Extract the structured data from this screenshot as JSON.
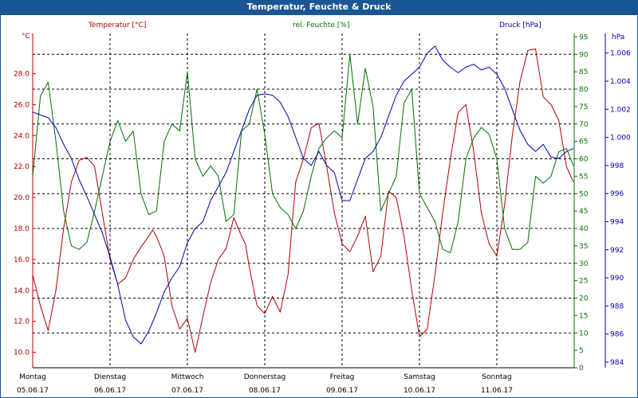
{
  "window": {
    "title": "Temperatur, Feuchte & Druck"
  },
  "colors": {
    "temperature": "#b40000",
    "humidity": "#007000",
    "pressure": "#0000b4",
    "grid": "#000000",
    "title_bg": "#1a5694"
  },
  "chart_data": {
    "type": "line",
    "title": "Temperatur, Feuchte & Druck",
    "grid": true,
    "x_labels": [
      {
        "day": "Montag",
        "date": "05.06.17"
      },
      {
        "day": "Dienstag",
        "date": "06.06.17"
      },
      {
        "day": "Mittwoch",
        "date": "07.06.17"
      },
      {
        "day": "Donnerstag",
        "date": "08.06.17"
      },
      {
        "day": "Freitag",
        "date": "09.06.17"
      },
      {
        "day": "Samstag",
        "date": "10.06.17"
      },
      {
        "day": "Sonntag",
        "date": "11.06.17"
      }
    ],
    "x_range_days": [
      0,
      7
    ],
    "axes": {
      "left": {
        "label": "Temperatur [°C]",
        "unit": "°C",
        "ylim": [
          9.0,
          30.6
        ],
        "ticks": [
          "10.0",
          "12.0",
          "14.0",
          "16.0",
          "18.0",
          "20.0",
          "22.0",
          "24.0",
          "26.0",
          "28.0"
        ],
        "tick_values": [
          10,
          12,
          14,
          16,
          18,
          20,
          22,
          24,
          26,
          28
        ]
      },
      "middle": {
        "label": "rel. Feuchte [%]",
        "unit": "%",
        "ylim": [
          0,
          96
        ],
        "ticks": [
          "0",
          "5",
          "10",
          "15",
          "20",
          "25",
          "30",
          "35",
          "40",
          "45",
          "50",
          "55",
          "60",
          "65",
          "70",
          "75",
          "80",
          "85",
          "90",
          "95"
        ],
        "tick_values": [
          0,
          5,
          10,
          15,
          20,
          25,
          30,
          35,
          40,
          45,
          50,
          55,
          60,
          65,
          70,
          75,
          80,
          85,
          90,
          95
        ]
      },
      "right": {
        "label": "Druck [hPa]",
        "unit": "hPa",
        "ylim": [
          983.6,
          1007.4
        ],
        "ticks": [
          "984",
          "986",
          "988",
          "990",
          "992",
          "994",
          "996",
          "998",
          "1.000",
          "1.002",
          "1.004",
          "1.006"
        ],
        "tick_values": [
          984,
          986,
          988,
          990,
          992,
          994,
          996,
          998,
          1000,
          1002,
          1004,
          1006
        ]
      }
    },
    "series": [
      {
        "name": "Temperatur [°C]",
        "axis": "left",
        "color": "#b40000",
        "x": [
          0,
          0.1,
          0.2,
          0.3,
          0.4,
          0.5,
          0.6,
          0.7,
          0.8,
          0.9,
          1.0,
          1.1,
          1.2,
          1.3,
          1.4,
          1.5,
          1.55,
          1.6,
          1.7,
          1.8,
          1.9,
          2.0,
          2.1,
          2.2,
          2.3,
          2.4,
          2.5,
          2.6,
          2.7,
          2.75,
          2.8,
          2.9,
          3.0,
          3.1,
          3.2,
          3.3,
          3.4,
          3.5,
          3.6,
          3.7,
          3.8,
          3.9,
          4.0,
          4.1,
          4.2,
          4.3,
          4.4,
          4.5,
          4.6,
          4.7,
          4.8,
          4.9,
          5.0,
          5.1,
          5.2,
          5.3,
          5.4,
          5.5,
          5.6,
          5.7,
          5.8,
          5.9,
          6.0,
          6.1,
          6.2,
          6.3,
          6.4,
          6.5,
          6.6,
          6.7,
          6.8,
          6.9,
          6.99
        ],
        "values": [
          15.0,
          13.0,
          11.4,
          14.0,
          18.0,
          21.0,
          22.4,
          22.6,
          22.0,
          19.0,
          16.0,
          14.4,
          14.8,
          16.0,
          16.8,
          17.5,
          17.9,
          17.5,
          16.2,
          13.0,
          11.5,
          12.2,
          10.0,
          12.3,
          14.5,
          16.0,
          16.7,
          18.7,
          17.5,
          17.0,
          15.5,
          13.0,
          12.5,
          13.6,
          12.6,
          15.0,
          21.0,
          22.5,
          24.5,
          24.8,
          22.0,
          19.0,
          17.0,
          16.5,
          17.5,
          18.8,
          15.2,
          16.2,
          20.4,
          20.0,
          17.5,
          14.0,
          11.0,
          11.5,
          15.0,
          19.0,
          22.5,
          25.5,
          26.0,
          23.0,
          19.0,
          17.0,
          16.2,
          19.5,
          24.0,
          27.5,
          29.5,
          29.6,
          26.5,
          26.0,
          25.0,
          22.0,
          21.0
        ]
      },
      {
        "name": "rel. Feuchte [%]",
        "axis": "middle",
        "color": "#007000",
        "x": [
          0,
          0.1,
          0.2,
          0.3,
          0.4,
          0.5,
          0.6,
          0.7,
          0.8,
          0.9,
          1.0,
          1.1,
          1.2,
          1.3,
          1.4,
          1.5,
          1.6,
          1.7,
          1.8,
          1.9,
          2.0,
          2.1,
          2.2,
          2.3,
          2.4,
          2.5,
          2.6,
          2.7,
          2.8,
          2.9,
          3.0,
          3.1,
          3.2,
          3.3,
          3.4,
          3.5,
          3.6,
          3.7,
          3.8,
          3.9,
          4.0,
          4.1,
          4.2,
          4.3,
          4.4,
          4.5,
          4.6,
          4.7,
          4.8,
          4.9,
          5.0,
          5.1,
          5.2,
          5.3,
          5.4,
          5.5,
          5.6,
          5.7,
          5.8,
          5.9,
          6.0,
          6.1,
          6.2,
          6.3,
          6.4,
          6.5,
          6.6,
          6.7,
          6.8,
          6.9,
          6.99
        ],
        "values": [
          55,
          78,
          82,
          65,
          45,
          35,
          34,
          36,
          45,
          55,
          65,
          71,
          65,
          68,
          50,
          44,
          45,
          65,
          70,
          68,
          85,
          60,
          55,
          58,
          55,
          42,
          44,
          68,
          70,
          80,
          67,
          50,
          46,
          44,
          40,
          45,
          55,
          63,
          66,
          68,
          66,
          90,
          70,
          86,
          75,
          45,
          50,
          55,
          76,
          80,
          50,
          46,
          42,
          34,
          33,
          42,
          60,
          66,
          69,
          67,
          60,
          40,
          34,
          34,
          36,
          55,
          53,
          55,
          62,
          63,
          58
        ]
      },
      {
        "name": "Druck [hPa]",
        "axis": "right",
        "color": "#0000b4",
        "x": [
          0,
          0.1,
          0.2,
          0.3,
          0.4,
          0.5,
          0.6,
          0.7,
          0.8,
          0.9,
          1.0,
          1.1,
          1.2,
          1.3,
          1.4,
          1.5,
          1.6,
          1.7,
          1.8,
          1.9,
          2.0,
          2.1,
          2.2,
          2.3,
          2.4,
          2.5,
          2.6,
          2.7,
          2.8,
          2.9,
          3.0,
          3.1,
          3.2,
          3.3,
          3.4,
          3.5,
          3.6,
          3.7,
          3.8,
          3.9,
          4.0,
          4.1,
          4.2,
          4.3,
          4.4,
          4.5,
          4.6,
          4.7,
          4.8,
          4.9,
          5.0,
          5.1,
          5.2,
          5.3,
          5.4,
          5.5,
          5.6,
          5.7,
          5.8,
          5.9,
          6.0,
          6.1,
          6.2,
          6.3,
          6.4,
          6.5,
          6.6,
          6.7,
          6.8,
          6.9,
          6.99
        ],
        "values": [
          1001.8,
          1001.6,
          1001.4,
          1000.7,
          999.5,
          998.5,
          997.0,
          995.8,
          994.5,
          993.2,
          991.5,
          989.5,
          987.0,
          985.8,
          985.3,
          986.2,
          987.5,
          989.0,
          990.0,
          990.8,
          992.5,
          993.5,
          994.0,
          995.5,
          996.5,
          997.5,
          999.0,
          1000.5,
          1002.0,
          1003.0,
          1003.1,
          1003.0,
          1002.5,
          1001.5,
          1000.0,
          998.5,
          998.0,
          999.0,
          998.0,
          997.5,
          995.5,
          995.5,
          997.0,
          998.5,
          999.0,
          1000.0,
          1001.5,
          1003.0,
          1004.0,
          1004.5,
          1005.0,
          1006.0,
          1006.5,
          1005.5,
          1005.0,
          1004.6,
          1005.0,
          1005.2,
          1004.8,
          1005.0,
          1004.5,
          1003.5,
          1002.0,
          1000.5,
          999.5,
          999.0,
          999.5,
          998.6,
          998.5,
          999.0,
          999.2
        ]
      }
    ]
  }
}
